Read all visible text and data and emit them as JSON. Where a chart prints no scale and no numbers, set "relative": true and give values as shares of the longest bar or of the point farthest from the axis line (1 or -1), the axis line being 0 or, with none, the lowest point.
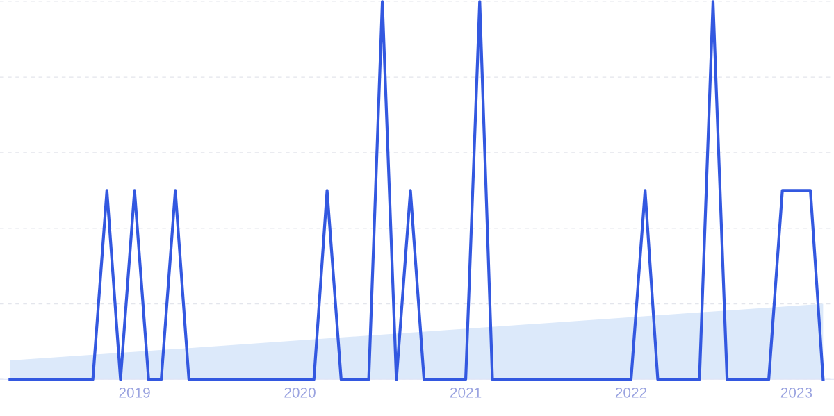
{
  "chart_data": {
    "type": "line",
    "relative": true,
    "grid": "y",
    "xlim": [
      "2018-03-10",
      "2023-03-25"
    ],
    "xticks": [
      "2019",
      "2020",
      "2021",
      "2022",
      "2023"
    ],
    "series": [
      {
        "type": "area",
        "color": "#dce9fa",
        "x": [
          "2018-04",
          "2023-03"
        ],
        "values": [
          0.05,
          0.2
        ]
      },
      {
        "color": "#3358e0",
        "x": [
          "2018-04",
          "2018-05",
          "2018-06",
          "2018-07",
          "2018-08",
          "2018-09",
          "2018-10",
          "2018-11",
          "2018-12",
          "2019-01",
          "2019-02",
          "2019-03",
          "2019-04",
          "2019-05",
          "2019-06",
          "2019-07",
          "2019-08",
          "2019-09",
          "2019-10",
          "2019-11",
          "2019-12",
          "2020-01",
          "2020-02",
          "2020-03",
          "2020-04",
          "2020-05",
          "2020-06",
          "2020-07",
          "2020-08",
          "2020-09",
          "2020-10",
          "2020-11",
          "2020-12",
          "2021-01",
          "2021-02",
          "2021-03",
          "2021-04",
          "2021-05",
          "2021-06",
          "2021-07",
          "2021-08",
          "2021-09",
          "2021-10",
          "2021-11",
          "2021-12",
          "2022-01",
          "2022-02",
          "2022-03",
          "2022-04",
          "2022-05",
          "2022-06",
          "2022-07",
          "2022-08",
          "2022-09",
          "2022-10",
          "2022-11",
          "2022-12",
          "2023-01",
          "2023-02",
          "2023-03"
        ],
        "values": [
          0,
          0,
          0,
          0,
          0,
          0,
          0,
          0.5,
          0,
          0.5,
          0,
          0,
          0.5,
          0,
          0,
          0,
          0,
          0,
          0,
          0,
          0,
          0,
          0,
          0.5,
          0,
          0,
          0,
          1,
          0,
          0.5,
          0,
          0,
          0,
          0,
          1,
          0,
          0,
          0,
          0,
          0,
          0,
          0,
          0,
          0,
          0,
          0,
          0.5,
          0,
          0,
          0,
          0,
          1,
          0,
          0,
          0,
          0,
          0.5,
          0.5,
          0.5,
          0
        ]
      }
    ]
  }
}
